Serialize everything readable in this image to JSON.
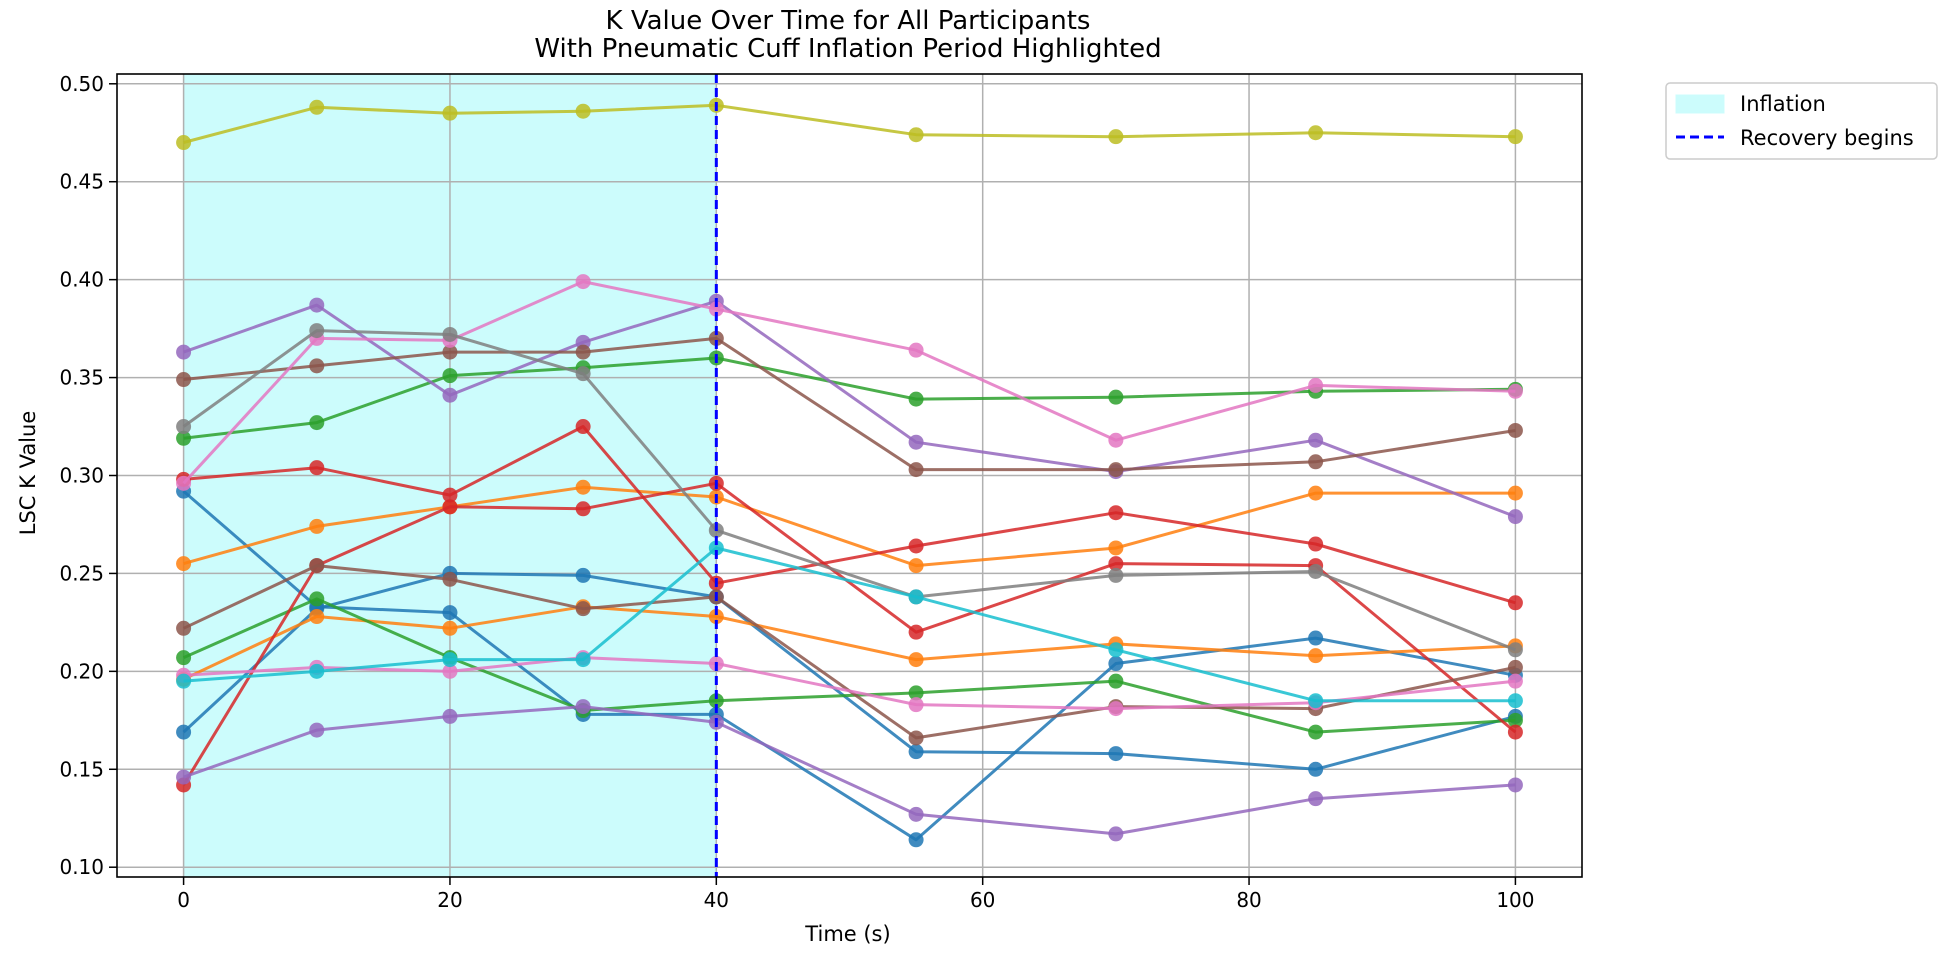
{
  "chart_data": {
    "type": "line",
    "title": "K Value Over Time for All Participants",
    "subtitle": "With Pneumatic Cuff Inflation Period Highlighted",
    "xlabel": "Time (s)",
    "ylabel": "LSC K Value",
    "xlim": [
      -5,
      105
    ],
    "ylim": [
      0.095,
      0.505
    ],
    "xticks": [
      0,
      20,
      40,
      60,
      80,
      100
    ],
    "yticks": [
      0.1,
      0.15,
      0.2,
      0.25,
      0.3,
      0.35,
      0.4,
      0.45,
      0.5
    ],
    "grid": true,
    "legend_position": "outside-top-right",
    "x": [
      0,
      10,
      20,
      30,
      40,
      55,
      70,
      85,
      100
    ],
    "inflation_span": [
      0,
      40
    ],
    "recovery_x": 40,
    "legend": [
      {
        "label": "Inflation",
        "kind": "patch",
        "color": "#ccfcfc"
      },
      {
        "label": "Recovery begins",
        "kind": "dashed-line",
        "color": "#0000ff"
      }
    ],
    "series": [
      {
        "color": "#1f77b4",
        "values": [
          0.292,
          0.233,
          0.23,
          0.178,
          0.178,
          0.114,
          0.204,
          0.217,
          0.198
        ]
      },
      {
        "color": "#1f77b4",
        "values": [
          0.169,
          0.232,
          0.25,
          0.249,
          0.238,
          0.159,
          0.158,
          0.15,
          0.177
        ]
      },
      {
        "color": "#ff7f0e",
        "values": [
          0.255,
          0.274,
          0.284,
          0.294,
          0.289,
          0.254,
          0.263,
          0.291,
          0.291
        ]
      },
      {
        "color": "#ff7f0e",
        "values": [
          0.196,
          0.228,
          0.222,
          0.233,
          0.228,
          0.206,
          0.214,
          0.208,
          0.213
        ]
      },
      {
        "color": "#2ca02c",
        "values": [
          0.319,
          0.327,
          0.351,
          0.355,
          0.36,
          0.339,
          0.34,
          0.343,
          0.344
        ]
      },
      {
        "color": "#2ca02c",
        "values": [
          0.207,
          0.237,
          0.207,
          0.18,
          0.185,
          0.189,
          0.195,
          0.169,
          0.175
        ]
      },
      {
        "color": "#d62728",
        "values": [
          0.298,
          0.304,
          0.29,
          0.325,
          0.245,
          0.264,
          0.281,
          0.265,
          0.235
        ]
      },
      {
        "color": "#d62728",
        "values": [
          0.142,
          0.254,
          0.284,
          0.283,
          0.296,
          0.22,
          0.255,
          0.254,
          0.169
        ]
      },
      {
        "color": "#9467bd",
        "values": [
          0.363,
          0.387,
          0.341,
          0.368,
          0.389,
          0.317,
          0.302,
          0.318,
          0.279
        ]
      },
      {
        "color": "#9467bd",
        "values": [
          0.146,
          0.17,
          0.177,
          0.182,
          0.174,
          0.127,
          0.117,
          0.135,
          0.142
        ]
      },
      {
        "color": "#8c564b",
        "values": [
          0.349,
          0.356,
          0.363,
          0.363,
          0.37,
          0.303,
          0.303,
          0.307,
          0.323
        ]
      },
      {
        "color": "#8c564b",
        "values": [
          0.222,
          0.254,
          0.247,
          0.232,
          0.238,
          0.166,
          0.182,
          0.181,
          0.202
        ]
      },
      {
        "color": "#e377c2",
        "values": [
          0.296,
          0.37,
          0.369,
          0.399,
          0.385,
          0.364,
          0.318,
          0.346,
          0.343
        ]
      },
      {
        "color": "#e377c2",
        "values": [
          0.198,
          0.202,
          0.2,
          0.207,
          0.204,
          0.183,
          0.181,
          0.184,
          0.195
        ]
      },
      {
        "color": "#7f7f7f",
        "values": [
          0.325,
          0.374,
          0.372,
          0.352,
          0.272,
          0.238,
          0.249,
          0.251,
          0.211
        ]
      },
      {
        "color": "#bcbd22",
        "values": [
          0.47,
          0.488,
          0.485,
          0.486,
          0.489,
          0.474,
          0.473,
          0.475,
          0.473
        ]
      },
      {
        "color": "#17becf",
        "values": [
          0.195,
          0.2,
          0.206,
          0.206,
          0.263,
          0.238,
          0.211,
          0.185,
          0.185
        ]
      }
    ]
  }
}
